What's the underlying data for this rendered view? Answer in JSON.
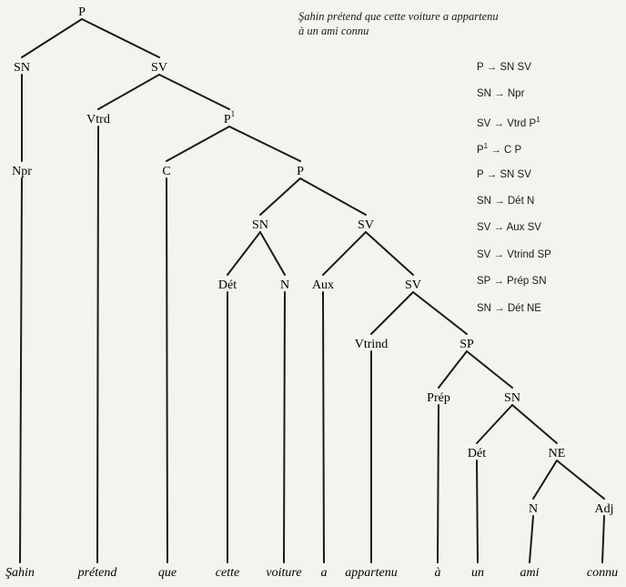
{
  "sentence": {
    "line1": "Şahin prétend que cette voiture a appartenu",
    "line2": "à un ami connu"
  },
  "nodes": [
    {
      "id": "p_root",
      "label": "P"
    },
    {
      "id": "sn1",
      "label": "SN"
    },
    {
      "id": "sv1",
      "label": "SV"
    },
    {
      "id": "npr",
      "label": "Npr"
    },
    {
      "id": "vtrd",
      "label": "Vtrd"
    },
    {
      "id": "p1",
      "label": "P",
      "sup": "1"
    },
    {
      "id": "c",
      "label": "C"
    },
    {
      "id": "p2",
      "label": "P"
    },
    {
      "id": "sn2",
      "label": "SN"
    },
    {
      "id": "sv2",
      "label": "SV"
    },
    {
      "id": "det1",
      "label": "Dét"
    },
    {
      "id": "n1",
      "label": "N"
    },
    {
      "id": "aux",
      "label": "Aux"
    },
    {
      "id": "sv3",
      "label": "SV"
    },
    {
      "id": "vtrind",
      "label": "Vtrind"
    },
    {
      "id": "sp",
      "label": "SP"
    },
    {
      "id": "prep",
      "label": "Prép"
    },
    {
      "id": "sn3",
      "label": "SN"
    },
    {
      "id": "det2",
      "label": "Dét"
    },
    {
      "id": "ne",
      "label": "NE"
    },
    {
      "id": "n2",
      "label": "N"
    },
    {
      "id": "adj",
      "label": "Adj"
    }
  ],
  "edges": [
    [
      "p_root",
      "sn1"
    ],
    [
      "p_root",
      "sv1"
    ],
    [
      "sn1",
      "npr"
    ],
    [
      "sv1",
      "vtrd"
    ],
    [
      "sv1",
      "p1"
    ],
    [
      "p1",
      "c"
    ],
    [
      "p1",
      "p2"
    ],
    [
      "p2",
      "sn2"
    ],
    [
      "p2",
      "sv2"
    ],
    [
      "sn2",
      "det1"
    ],
    [
      "sn2",
      "n1"
    ],
    [
      "sv2",
      "aux"
    ],
    [
      "sv2",
      "sv3"
    ],
    [
      "sv3",
      "vtrind"
    ],
    [
      "sv3",
      "sp"
    ],
    [
      "sp",
      "prep"
    ],
    [
      "sp",
      "sn3"
    ],
    [
      "sn3",
      "det2"
    ],
    [
      "sn3",
      "ne"
    ],
    [
      "ne",
      "n2"
    ],
    [
      "ne",
      "adj"
    ]
  ],
  "words": [
    {
      "text": "Şahin",
      "parent": "npr"
    },
    {
      "text": "prétend",
      "parent": "vtrd"
    },
    {
      "text": "que",
      "parent": "c"
    },
    {
      "text": "cette",
      "parent": "det1"
    },
    {
      "text": "voiture",
      "parent": "n1"
    },
    {
      "text": "a",
      "parent": "aux"
    },
    {
      "text": "appartenu",
      "parent": "vtrind"
    },
    {
      "text": "à",
      "parent": "prep"
    },
    {
      "text": "un",
      "parent": "det2"
    },
    {
      "text": "ami",
      "parent": "n2"
    },
    {
      "text": "connu",
      "parent": "adj"
    }
  ],
  "rules": [
    {
      "lhs": "P",
      "rhs": "SN SV"
    },
    {
      "lhs": "SN",
      "rhs": "Npr"
    },
    {
      "lhs": "SV",
      "rhs": "Vtrd P",
      "rhs_sup": "1"
    },
    {
      "lhs": "P",
      "lhs_sup": "1",
      "rhs": "C P"
    },
    {
      "lhs": "P",
      "rhs": "SN SV"
    },
    {
      "lhs": "SN",
      "rhs": "Dét N"
    },
    {
      "lhs": "SV",
      "rhs": "Aux SV"
    },
    {
      "lhs": "SV",
      "rhs": "Vtrind SP"
    },
    {
      "lhs": "SP",
      "rhs": "Prép SN"
    },
    {
      "lhs": "SN",
      "rhs": "Dét NE"
    }
  ]
}
